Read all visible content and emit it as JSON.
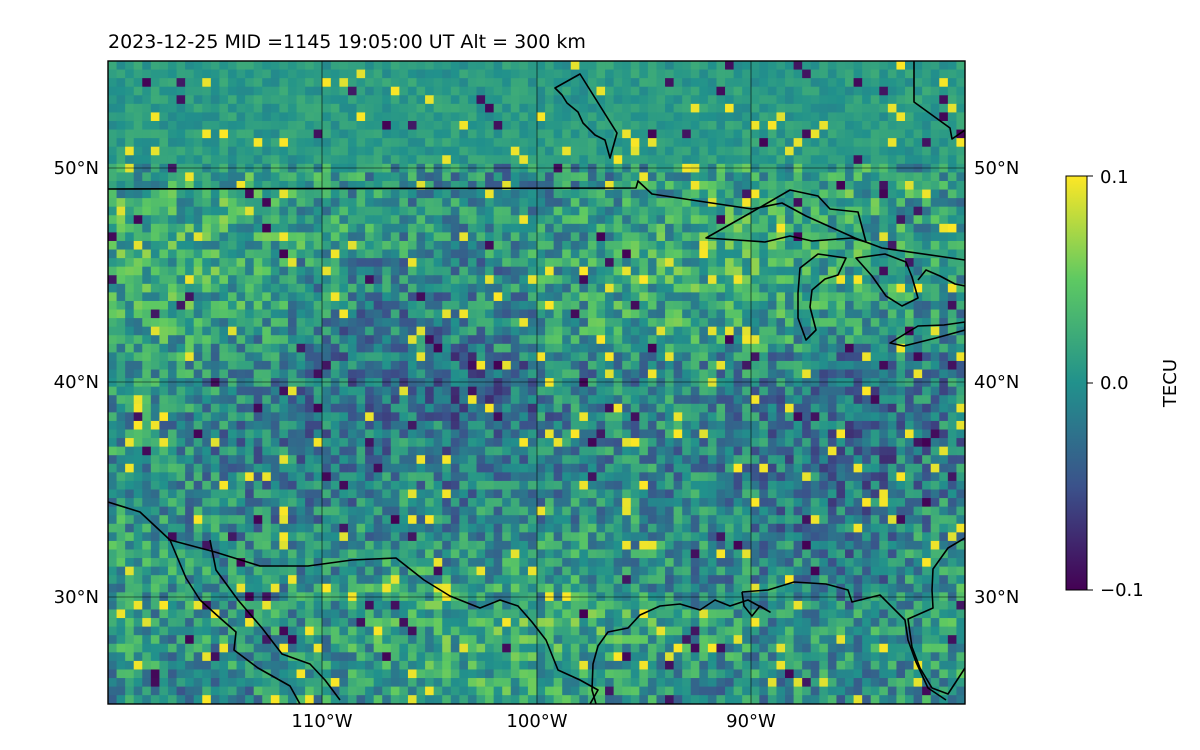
{
  "title": "2023-12-25  MID =1145    19:05:00  UT  Alt = 300 km",
  "map": {
    "lon_range": [
      -120,
      -80
    ],
    "lat_range": [
      25,
      55
    ],
    "lon_ticks": [
      -110,
      -100,
      -90
    ],
    "lon_tick_labels": [
      "110°W",
      "100°W",
      "90°W"
    ],
    "lat_ticks": [
      30,
      40,
      50
    ],
    "lat_tick_labels": [
      "30°N",
      "40°N",
      "50°N"
    ],
    "grid": true,
    "coastlines": true,
    "borders": true
  },
  "colorbar": {
    "label": "TECU",
    "min": -0.1,
    "max": 0.1,
    "ticks": [
      0.1,
      0.0,
      -0.1
    ],
    "tick_labels": [
      "0.1",
      "0.0",
      "−0.1"
    ],
    "colormap": "viridis",
    "colors": [
      "#440154",
      "#3b528b",
      "#21918c",
      "#5ec962",
      "#fde725"
    ]
  }
}
